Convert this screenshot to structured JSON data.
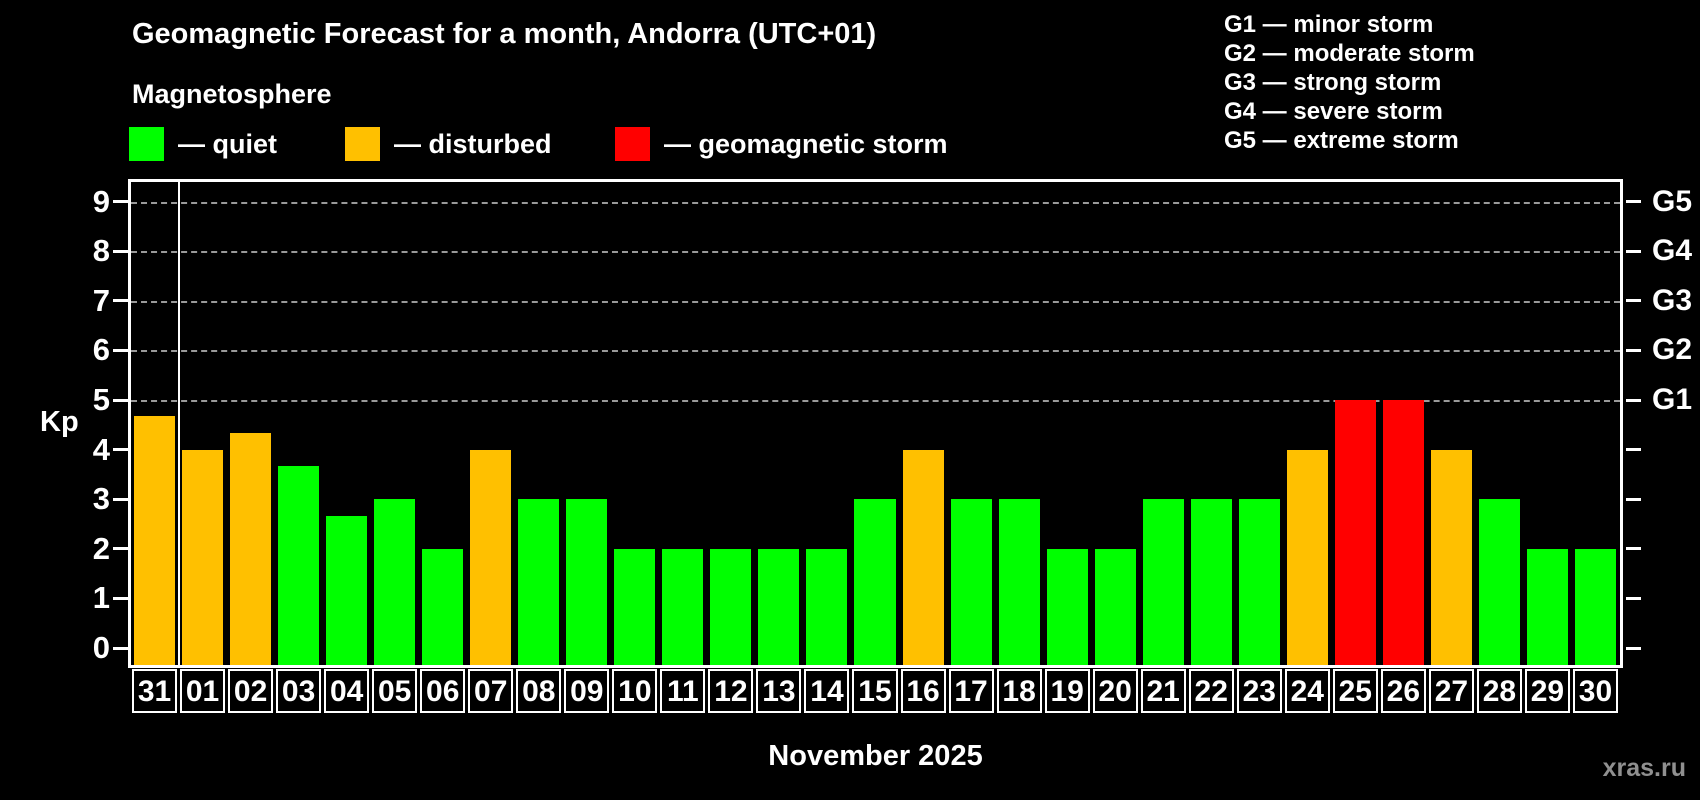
{
  "title": "Geomagnetic Forecast for a month, Andorra (UTC+01)",
  "subtitle": "Magnetosphere",
  "legend": {
    "items": [
      {
        "label": "— quiet",
        "status": "quiet",
        "color": "#00ff00"
      },
      {
        "label": "— disturbed",
        "status": "disturbed",
        "color": "#ffc000"
      },
      {
        "label": "— geomagnetic storm",
        "status": "storm",
        "color": "#ff0000"
      }
    ]
  },
  "storm_scale": [
    "G1 — minor storm",
    "G2 — moderate storm",
    "G3 — strong storm",
    "G4 — severe storm",
    "G5 — extreme storm"
  ],
  "watermark": "xras.ru",
  "chart_data": {
    "type": "bar",
    "title": "Geomagnetic Forecast for a month, Andorra (UTC+01)",
    "xlabel": "November 2025",
    "ylabel": "Kp",
    "ylim": [
      0,
      9
    ],
    "yticks": [
      0,
      1,
      2,
      3,
      4,
      5,
      6,
      7,
      8,
      9
    ],
    "gridlines_at": [
      5,
      6,
      7,
      8,
      9
    ],
    "grid": "dashed horizontal lines at storm levels G1-G5 only",
    "legend_position": "top",
    "right_axis": [
      {
        "label": "G1",
        "kp": 5
      },
      {
        "label": "G2",
        "kp": 6
      },
      {
        "label": "G3",
        "kp": 7
      },
      {
        "label": "G4",
        "kp": 8
      },
      {
        "label": "G5",
        "kp": 9
      }
    ],
    "month_separator_after": "31",
    "categories": [
      "31",
      "01",
      "02",
      "03",
      "04",
      "05",
      "06",
      "07",
      "08",
      "09",
      "10",
      "11",
      "12",
      "13",
      "14",
      "15",
      "16",
      "17",
      "18",
      "19",
      "20",
      "21",
      "22",
      "23",
      "24",
      "25",
      "26",
      "27",
      "28",
      "29",
      "30"
    ],
    "values": [
      4.67,
      4,
      4.33,
      3.67,
      2.67,
      3,
      2,
      4,
      3,
      3,
      2,
      2,
      2,
      2,
      2,
      3,
      4,
      3,
      3,
      2,
      2,
      3,
      3,
      3,
      4,
      5,
      5,
      4,
      3,
      2,
      2
    ],
    "statuses": [
      "disturbed",
      "disturbed",
      "disturbed",
      "quiet",
      "quiet",
      "quiet",
      "quiet",
      "disturbed",
      "quiet",
      "quiet",
      "quiet",
      "quiet",
      "quiet",
      "quiet",
      "quiet",
      "quiet",
      "disturbed",
      "quiet",
      "quiet",
      "quiet",
      "quiet",
      "quiet",
      "quiet",
      "quiet",
      "disturbed",
      "storm",
      "storm",
      "disturbed",
      "quiet",
      "quiet",
      "quiet"
    ],
    "status_colors": {
      "quiet": "#00ff00",
      "disturbed": "#ffc000",
      "storm": "#ff0000"
    }
  }
}
